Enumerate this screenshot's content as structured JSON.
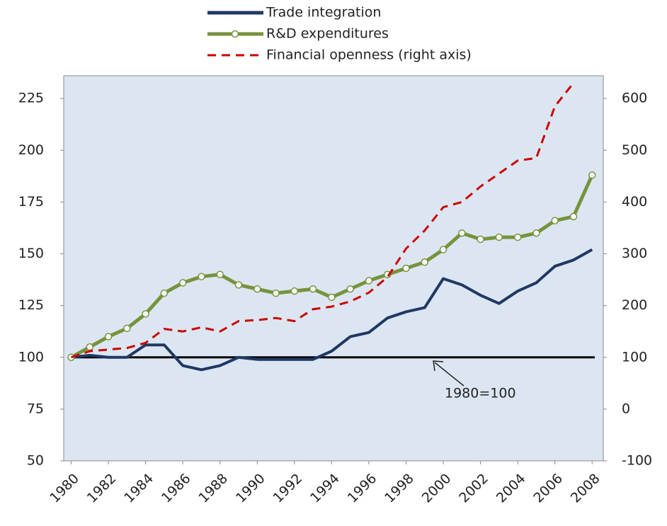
{
  "chart_data": {
    "type": "line",
    "x": [
      1980,
      1981,
      1982,
      1983,
      1984,
      1985,
      1986,
      1987,
      1988,
      1989,
      1990,
      1991,
      1992,
      1993,
      1994,
      1995,
      1996,
      1997,
      1998,
      1999,
      2000,
      2001,
      2002,
      2003,
      2004,
      2005,
      2006,
      2007,
      2008
    ],
    "series": [
      {
        "name": "Trade integration",
        "color": "#1f3864",
        "values": [
          100,
          101,
          100,
          100,
          106,
          106,
          96,
          94,
          96,
          100,
          99,
          99,
          99,
          99,
          103,
          110,
          112,
          119,
          122,
          124,
          138,
          135,
          130,
          126,
          132,
          136,
          144,
          147,
          152
        ]
      },
      {
        "name": "R&D expenditures",
        "color": "#77933c",
        "markers": true,
        "values": [
          100,
          105,
          110,
          114,
          121,
          131,
          136,
          139,
          140,
          135,
          133,
          131,
          132,
          133,
          129,
          133,
          137,
          140,
          143,
          146,
          152,
          160,
          157,
          158,
          158,
          160,
          166,
          168,
          188
        ]
      },
      {
        "name": "Financial openness (right axis)",
        "color": "#cc0000",
        "dashed": true,
        "axis": "y2",
        "values": [
          100,
          112,
          115,
          118,
          128,
          155,
          150,
          158,
          150,
          170,
          172,
          176,
          170,
          193,
          198,
          208,
          225,
          255,
          310,
          345,
          390,
          400,
          430,
          455,
          480,
          485,
          585,
          630,
          null
        ]
      }
    ],
    "xlim": [
      1979.6,
      2008.6
    ],
    "xticks": [
      1980,
      1982,
      1984,
      1986,
      1988,
      1990,
      1992,
      1994,
      1996,
      1998,
      2000,
      2002,
      2004,
      2006,
      2008
    ],
    "ylim": [
      50,
      236
    ],
    "yticks": [
      50,
      75,
      100,
      125,
      150,
      175,
      200,
      225
    ],
    "y2lim": [
      -100,
      644
    ],
    "y2ticks": [
      -100,
      0,
      100,
      200,
      300,
      400,
      500,
      600
    ],
    "reference_line": 100,
    "annotation": "1980=100"
  }
}
